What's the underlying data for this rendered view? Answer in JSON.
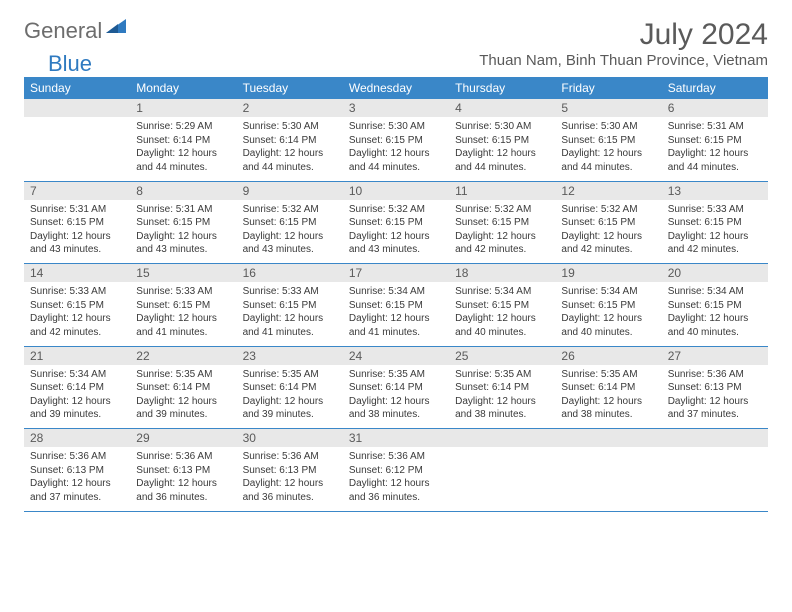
{
  "logo": {
    "text_gray": "General",
    "text_blue": "Blue"
  },
  "title": "July 2024",
  "subtitle": "Thuan Nam, Binh Thuan Province, Vietnam",
  "colors": {
    "header_bg": "#3a87c8",
    "header_text": "#ffffff",
    "daynum_bg": "#e8e8e8",
    "text_gray": "#5a5a5a",
    "text_body": "#3a3a3a",
    "logo_gray": "#6d6d6d",
    "logo_blue": "#2f7ac0",
    "page_bg": "#ffffff",
    "row_border": "#3a87c8"
  },
  "weekdays": [
    "Sunday",
    "Monday",
    "Tuesday",
    "Wednesday",
    "Thursday",
    "Friday",
    "Saturday"
  ],
  "weeks": [
    {
      "nums": [
        "",
        "1",
        "2",
        "3",
        "4",
        "5",
        "6"
      ],
      "cells": [
        {
          "sr": "",
          "ss": "",
          "dl": ""
        },
        {
          "sr": "Sunrise: 5:29 AM",
          "ss": "Sunset: 6:14 PM",
          "dl": "Daylight: 12 hours and 44 minutes."
        },
        {
          "sr": "Sunrise: 5:30 AM",
          "ss": "Sunset: 6:14 PM",
          "dl": "Daylight: 12 hours and 44 minutes."
        },
        {
          "sr": "Sunrise: 5:30 AM",
          "ss": "Sunset: 6:15 PM",
          "dl": "Daylight: 12 hours and 44 minutes."
        },
        {
          "sr": "Sunrise: 5:30 AM",
          "ss": "Sunset: 6:15 PM",
          "dl": "Daylight: 12 hours and 44 minutes."
        },
        {
          "sr": "Sunrise: 5:30 AM",
          "ss": "Sunset: 6:15 PM",
          "dl": "Daylight: 12 hours and 44 minutes."
        },
        {
          "sr": "Sunrise: 5:31 AM",
          "ss": "Sunset: 6:15 PM",
          "dl": "Daylight: 12 hours and 44 minutes."
        }
      ]
    },
    {
      "nums": [
        "7",
        "8",
        "9",
        "10",
        "11",
        "12",
        "13"
      ],
      "cells": [
        {
          "sr": "Sunrise: 5:31 AM",
          "ss": "Sunset: 6:15 PM",
          "dl": "Daylight: 12 hours and 43 minutes."
        },
        {
          "sr": "Sunrise: 5:31 AM",
          "ss": "Sunset: 6:15 PM",
          "dl": "Daylight: 12 hours and 43 minutes."
        },
        {
          "sr": "Sunrise: 5:32 AM",
          "ss": "Sunset: 6:15 PM",
          "dl": "Daylight: 12 hours and 43 minutes."
        },
        {
          "sr": "Sunrise: 5:32 AM",
          "ss": "Sunset: 6:15 PM",
          "dl": "Daylight: 12 hours and 43 minutes."
        },
        {
          "sr": "Sunrise: 5:32 AM",
          "ss": "Sunset: 6:15 PM",
          "dl": "Daylight: 12 hours and 42 minutes."
        },
        {
          "sr": "Sunrise: 5:32 AM",
          "ss": "Sunset: 6:15 PM",
          "dl": "Daylight: 12 hours and 42 minutes."
        },
        {
          "sr": "Sunrise: 5:33 AM",
          "ss": "Sunset: 6:15 PM",
          "dl": "Daylight: 12 hours and 42 minutes."
        }
      ]
    },
    {
      "nums": [
        "14",
        "15",
        "16",
        "17",
        "18",
        "19",
        "20"
      ],
      "cells": [
        {
          "sr": "Sunrise: 5:33 AM",
          "ss": "Sunset: 6:15 PM",
          "dl": "Daylight: 12 hours and 42 minutes."
        },
        {
          "sr": "Sunrise: 5:33 AM",
          "ss": "Sunset: 6:15 PM",
          "dl": "Daylight: 12 hours and 41 minutes."
        },
        {
          "sr": "Sunrise: 5:33 AM",
          "ss": "Sunset: 6:15 PM",
          "dl": "Daylight: 12 hours and 41 minutes."
        },
        {
          "sr": "Sunrise: 5:34 AM",
          "ss": "Sunset: 6:15 PM",
          "dl": "Daylight: 12 hours and 41 minutes."
        },
        {
          "sr": "Sunrise: 5:34 AM",
          "ss": "Sunset: 6:15 PM",
          "dl": "Daylight: 12 hours and 40 minutes."
        },
        {
          "sr": "Sunrise: 5:34 AM",
          "ss": "Sunset: 6:15 PM",
          "dl": "Daylight: 12 hours and 40 minutes."
        },
        {
          "sr": "Sunrise: 5:34 AM",
          "ss": "Sunset: 6:15 PM",
          "dl": "Daylight: 12 hours and 40 minutes."
        }
      ]
    },
    {
      "nums": [
        "21",
        "22",
        "23",
        "24",
        "25",
        "26",
        "27"
      ],
      "cells": [
        {
          "sr": "Sunrise: 5:34 AM",
          "ss": "Sunset: 6:14 PM",
          "dl": "Daylight: 12 hours and 39 minutes."
        },
        {
          "sr": "Sunrise: 5:35 AM",
          "ss": "Sunset: 6:14 PM",
          "dl": "Daylight: 12 hours and 39 minutes."
        },
        {
          "sr": "Sunrise: 5:35 AM",
          "ss": "Sunset: 6:14 PM",
          "dl": "Daylight: 12 hours and 39 minutes."
        },
        {
          "sr": "Sunrise: 5:35 AM",
          "ss": "Sunset: 6:14 PM",
          "dl": "Daylight: 12 hours and 38 minutes."
        },
        {
          "sr": "Sunrise: 5:35 AM",
          "ss": "Sunset: 6:14 PM",
          "dl": "Daylight: 12 hours and 38 minutes."
        },
        {
          "sr": "Sunrise: 5:35 AM",
          "ss": "Sunset: 6:14 PM",
          "dl": "Daylight: 12 hours and 38 minutes."
        },
        {
          "sr": "Sunrise: 5:36 AM",
          "ss": "Sunset: 6:13 PM",
          "dl": "Daylight: 12 hours and 37 minutes."
        }
      ]
    },
    {
      "nums": [
        "28",
        "29",
        "30",
        "31",
        "",
        "",
        ""
      ],
      "cells": [
        {
          "sr": "Sunrise: 5:36 AM",
          "ss": "Sunset: 6:13 PM",
          "dl": "Daylight: 12 hours and 37 minutes."
        },
        {
          "sr": "Sunrise: 5:36 AM",
          "ss": "Sunset: 6:13 PM",
          "dl": "Daylight: 12 hours and 36 minutes."
        },
        {
          "sr": "Sunrise: 5:36 AM",
          "ss": "Sunset: 6:13 PM",
          "dl": "Daylight: 12 hours and 36 minutes."
        },
        {
          "sr": "Sunrise: 5:36 AM",
          "ss": "Sunset: 6:12 PM",
          "dl": "Daylight: 12 hours and 36 minutes."
        },
        {
          "sr": "",
          "ss": "",
          "dl": ""
        },
        {
          "sr": "",
          "ss": "",
          "dl": ""
        },
        {
          "sr": "",
          "ss": "",
          "dl": ""
        }
      ]
    }
  ]
}
